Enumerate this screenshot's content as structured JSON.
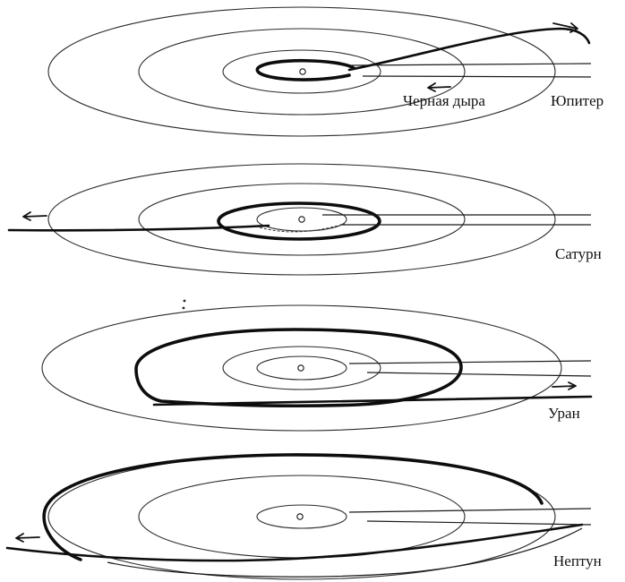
{
  "labels": {
    "black_hole": "Черная дыра",
    "jupiter": "Юпитер",
    "saturn": "Сатурн",
    "uranus": "Уран",
    "neptune": "Нептун"
  }
}
